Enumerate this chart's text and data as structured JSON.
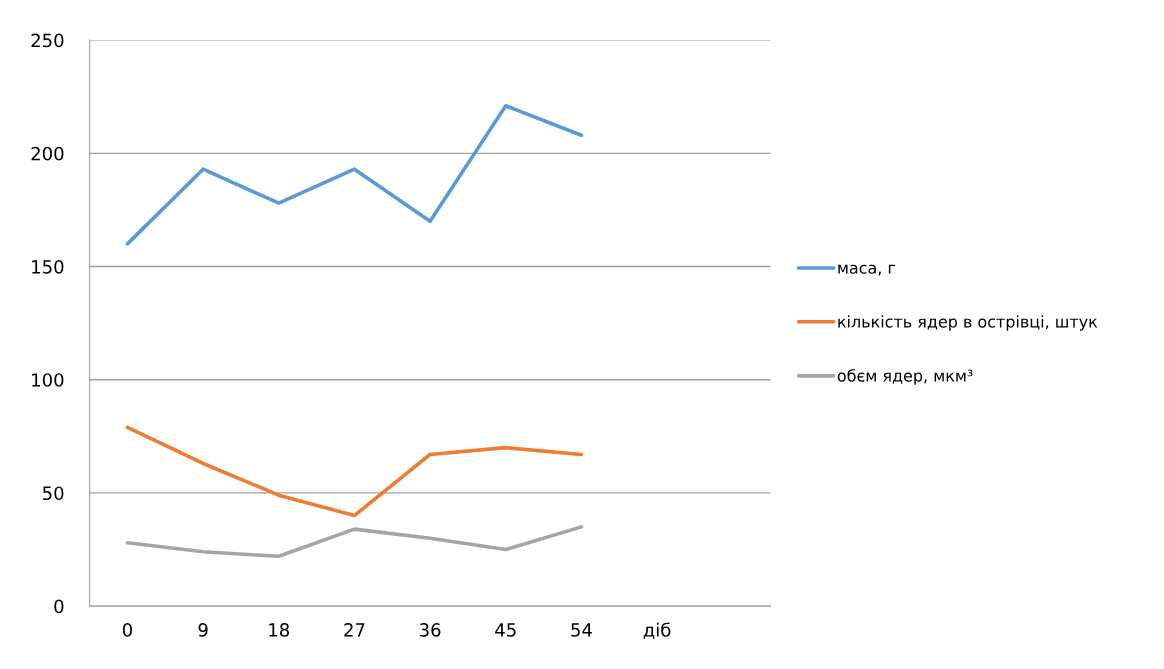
{
  "chart_data": {
    "type": "line",
    "categories": [
      "0",
      "9",
      "18",
      "27",
      "36",
      "45",
      "54",
      "діб",
      null
    ],
    "series": [
      {
        "name": "маса, г",
        "color": "#5b9bd5",
        "values": [
          160,
          193,
          178,
          193,
          170,
          221,
          208,
          null,
          null
        ]
      },
      {
        "name": "кількість ядер в острівці, штук",
        "color": "#ed7d31",
        "values": [
          79,
          63,
          49,
          40,
          67,
          70,
          67,
          null,
          null
        ]
      },
      {
        "name": "обєм ядер, мкм³",
        "color": "#a5a5a5",
        "values": [
          28,
          24,
          22,
          34,
          30,
          25,
          35,
          null,
          null
        ]
      }
    ],
    "ylim": [
      0,
      250
    ],
    "yticks": [
      0,
      50,
      100,
      150,
      200,
      250
    ],
    "grid": "y",
    "legend": "right",
    "marker": "none",
    "line_style": "solid"
  }
}
